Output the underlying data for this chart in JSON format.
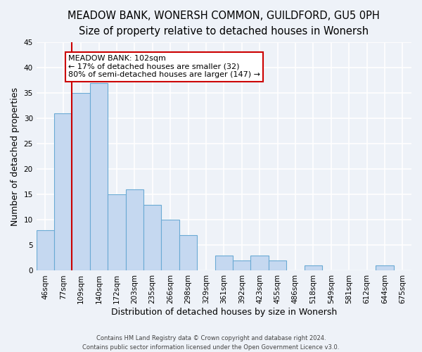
{
  "title": "MEADOW BANK, WONERSH COMMON, GUILDFORD, GU5 0PH",
  "subtitle": "Size of property relative to detached houses in Wonersh",
  "xlabel": "Distribution of detached houses by size in Wonersh",
  "ylabel": "Number of detached properties",
  "bin_labels": [
    "46sqm",
    "77sqm",
    "109sqm",
    "140sqm",
    "172sqm",
    "203sqm",
    "235sqm",
    "266sqm",
    "298sqm",
    "329sqm",
    "361sqm",
    "392sqm",
    "423sqm",
    "455sqm",
    "486sqm",
    "518sqm",
    "549sqm",
    "581sqm",
    "612sqm",
    "644sqm",
    "675sqm"
  ],
  "bar_values": [
    8,
    31,
    35,
    37,
    15,
    16,
    13,
    10,
    7,
    0,
    3,
    2,
    3,
    2,
    0,
    1,
    0,
    0,
    0,
    1,
    0
  ],
  "bar_color": "#c5d8f0",
  "bar_edgecolor": "#6aaad4",
  "ylim": [
    0,
    45
  ],
  "yticks": [
    0,
    5,
    10,
    15,
    20,
    25,
    30,
    35,
    40,
    45
  ],
  "property_line_index": 2,
  "property_line_color": "#cc0000",
  "annotation_line1": "MEADOW BANK: 102sqm",
  "annotation_line2": "← 17% of detached houses are smaller (32)",
  "annotation_line3": "80% of semi-detached houses are larger (147) →",
  "annotation_box_edgecolor": "#cc0000",
  "annotation_box_facecolor": "#ffffff",
  "footer_line1": "Contains HM Land Registry data © Crown copyright and database right 2024.",
  "footer_line2": "Contains public sector information licensed under the Open Government Licence v3.0.",
  "background_color": "#eef2f8",
  "grid_color": "#ffffff",
  "title_fontsize": 10.5,
  "subtitle_fontsize": 9.5,
  "axis_label_fontsize": 9,
  "tick_fontsize": 7.5,
  "annotation_fontsize": 8,
  "footer_fontsize": 6
}
